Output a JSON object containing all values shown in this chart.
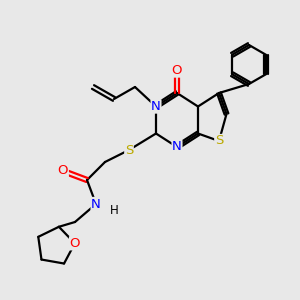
{
  "bg_color": "#e8e8e8",
  "bond_color": "#000000",
  "N_color": "#0000ff",
  "O_color": "#ff0000",
  "S_color": "#bbaa00",
  "line_width": 1.6,
  "figsize": [
    3.0,
    3.0
  ],
  "dpi": 100,
  "xlim": [
    0,
    10
  ],
  "ylim": [
    0,
    10
  ]
}
